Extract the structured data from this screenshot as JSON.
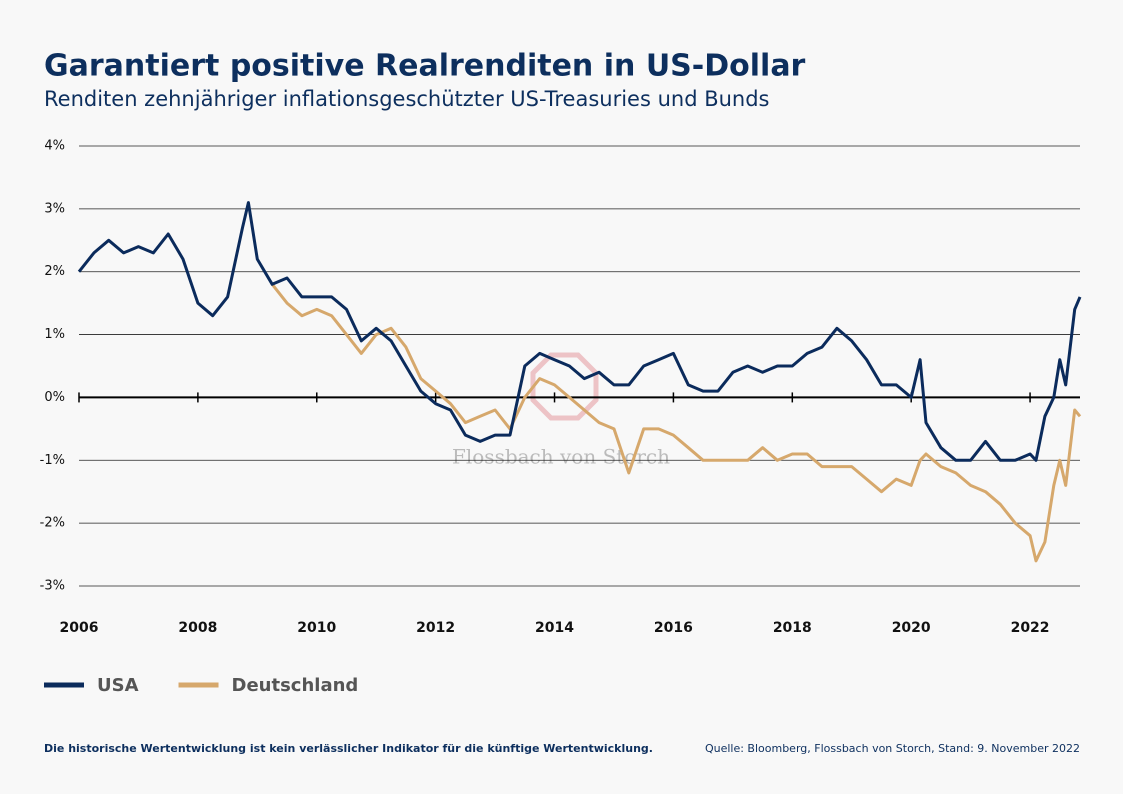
{
  "chart_data": {
    "type": "line",
    "title": "Garantiert positive Realrenditen in US-Dollar",
    "subtitle": "Renditen zehnjähriger inflationsgeschützter US-Treasuries und Bunds",
    "watermark": "Flossbach von Storch",
    "note": "Die historische Wertentwicklung ist kein verlässlicher Indikator für die künftige Wertentwicklung.",
    "source": "Quelle: Bloomberg, Flossbach von Storch, Stand: 9. November 2022",
    "x": [
      2006,
      2006.25,
      2006.5,
      2006.75,
      2007,
      2007.25,
      2007.5,
      2007.75,
      2008,
      2008.25,
      2008.5,
      2008.75,
      2008.85,
      2009,
      2009.25,
      2009.5,
      2009.75,
      2010,
      2010.25,
      2010.5,
      2010.75,
      2011,
      2011.25,
      2011.5,
      2011.75,
      2012,
      2012.25,
      2012.5,
      2012.75,
      2013,
      2013.25,
      2013.5,
      2013.75,
      2014,
      2014.25,
      2014.5,
      2014.75,
      2015,
      2015.25,
      2015.5,
      2015.75,
      2016,
      2016.25,
      2016.5,
      2016.75,
      2017,
      2017.25,
      2017.5,
      2017.75,
      2018,
      2018.25,
      2018.5,
      2018.75,
      2019,
      2019.25,
      2019.5,
      2019.75,
      2020,
      2020.15,
      2020.25,
      2020.5,
      2020.75,
      2021,
      2021.25,
      2021.5,
      2021.75,
      2022,
      2022.1,
      2022.25,
      2022.4,
      2022.5,
      2022.6,
      2022.75,
      2022.84
    ],
    "series": [
      {
        "name": "USA",
        "color": "#0b2b5c",
        "values": [
          2.0,
          2.3,
          2.5,
          2.3,
          2.4,
          2.3,
          2.6,
          2.2,
          1.5,
          1.3,
          1.6,
          2.7,
          3.1,
          2.2,
          1.8,
          1.9,
          1.6,
          1.6,
          1.6,
          1.4,
          0.9,
          1.1,
          0.9,
          0.5,
          0.1,
          -0.1,
          -0.2,
          -0.6,
          -0.7,
          -0.6,
          -0.6,
          0.5,
          0.7,
          0.6,
          0.5,
          0.3,
          0.4,
          0.2,
          0.2,
          0.5,
          0.6,
          0.7,
          0.2,
          0.1,
          0.1,
          0.4,
          0.5,
          0.4,
          0.5,
          0.5,
          0.7,
          0.8,
          1.1,
          0.9,
          0.6,
          0.2,
          0.2,
          0.0,
          0.6,
          -0.4,
          -0.8,
          -1.0,
          -1.0,
          -0.7,
          -1.0,
          -1.0,
          -0.9,
          -1.0,
          -0.3,
          0.0,
          0.6,
          0.2,
          1.4,
          1.6
        ]
      },
      {
        "name": "Deutschland",
        "color": "#d6a86c",
        "values": [
          null,
          null,
          null,
          null,
          null,
          null,
          null,
          null,
          null,
          null,
          null,
          null,
          null,
          null,
          1.8,
          1.5,
          1.3,
          1.4,
          1.3,
          1.0,
          0.7,
          1.0,
          1.1,
          0.8,
          0.3,
          0.1,
          -0.1,
          -0.4,
          -0.3,
          -0.2,
          -0.5,
          0.0,
          0.3,
          0.2,
          0.0,
          -0.2,
          -0.4,
          -0.5,
          -1.2,
          -0.5,
          -0.5,
          -0.6,
          -0.8,
          -1.0,
          -1.0,
          -1.0,
          -1.0,
          -0.8,
          -1.0,
          -0.9,
          -0.9,
          -1.1,
          -1.1,
          -1.1,
          -1.3,
          -1.5,
          -1.3,
          -1.4,
          -1.0,
          -0.9,
          -1.1,
          -1.2,
          -1.4,
          -1.5,
          -1.7,
          -2.0,
          -2.2,
          -2.6,
          -2.3,
          -1.4,
          -1.0,
          -1.4,
          -0.2,
          -0.3
        ]
      }
    ],
    "xlim": [
      2006,
      2022.84
    ],
    "xticks": [
      2006,
      2008,
      2010,
      2012,
      2014,
      2016,
      2018,
      2020,
      2022
    ],
    "ylim": [
      -3,
      4
    ],
    "yticks": [
      {
        "value": -3,
        "label": "-3%"
      },
      {
        "value": -2,
        "label": "-2%"
      },
      {
        "value": -1,
        "label": "-1%"
      },
      {
        "value": 0,
        "label": "0%"
      },
      {
        "value": 1,
        "label": "1%"
      },
      {
        "value": 2,
        "label": "2%"
      },
      {
        "value": 3,
        "label": "3%"
      },
      {
        "value": 4,
        "label": "4%"
      }
    ],
    "grid": true
  }
}
